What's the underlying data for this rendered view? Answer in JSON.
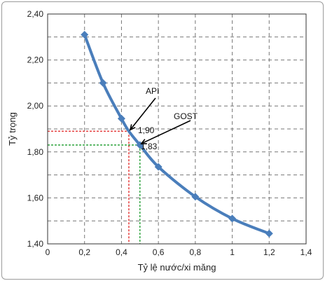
{
  "chart_data": {
    "type": "line",
    "title": "",
    "xlabel": "Tỷ lệ nước/xi măng",
    "ylabel": "Tỷ trọng",
    "xlim": [
      0,
      1.4
    ],
    "ylim": [
      1.4,
      2.4
    ],
    "grid": true,
    "xticks": [
      0,
      0.2,
      0.4,
      0.6,
      0.8,
      1.0,
      1.2,
      1.4
    ],
    "yticks": [
      1.4,
      1.6,
      1.8,
      2.0,
      2.2,
      2.4
    ],
    "xtick_labels": [
      "0",
      "0,2",
      "0,4",
      "0,6",
      "0,8",
      "1",
      "1,2",
      "1,4"
    ],
    "ytick_labels": [
      "1,40",
      "1,60",
      "1,80",
      "2,00",
      "2,20",
      "2,40"
    ],
    "series": [
      {
        "x": [
          0.2,
          0.3,
          0.4,
          0.44,
          0.5,
          0.6,
          0.8,
          1.0,
          1.2
        ],
        "y": [
          2.31,
          2.1,
          1.945,
          1.89,
          1.83,
          1.735,
          1.605,
          1.51,
          1.445
        ],
        "color": "#4a7ebb"
      }
    ],
    "annotations": [
      {
        "label": "API",
        "value_label": "1,90",
        "x": 0.44,
        "y": 1.89,
        "color": "#e02020"
      },
      {
        "label": "GOST",
        "value_label": "1,83",
        "x": 0.5,
        "y": 1.83,
        "color": "#1a9a2a"
      }
    ]
  }
}
